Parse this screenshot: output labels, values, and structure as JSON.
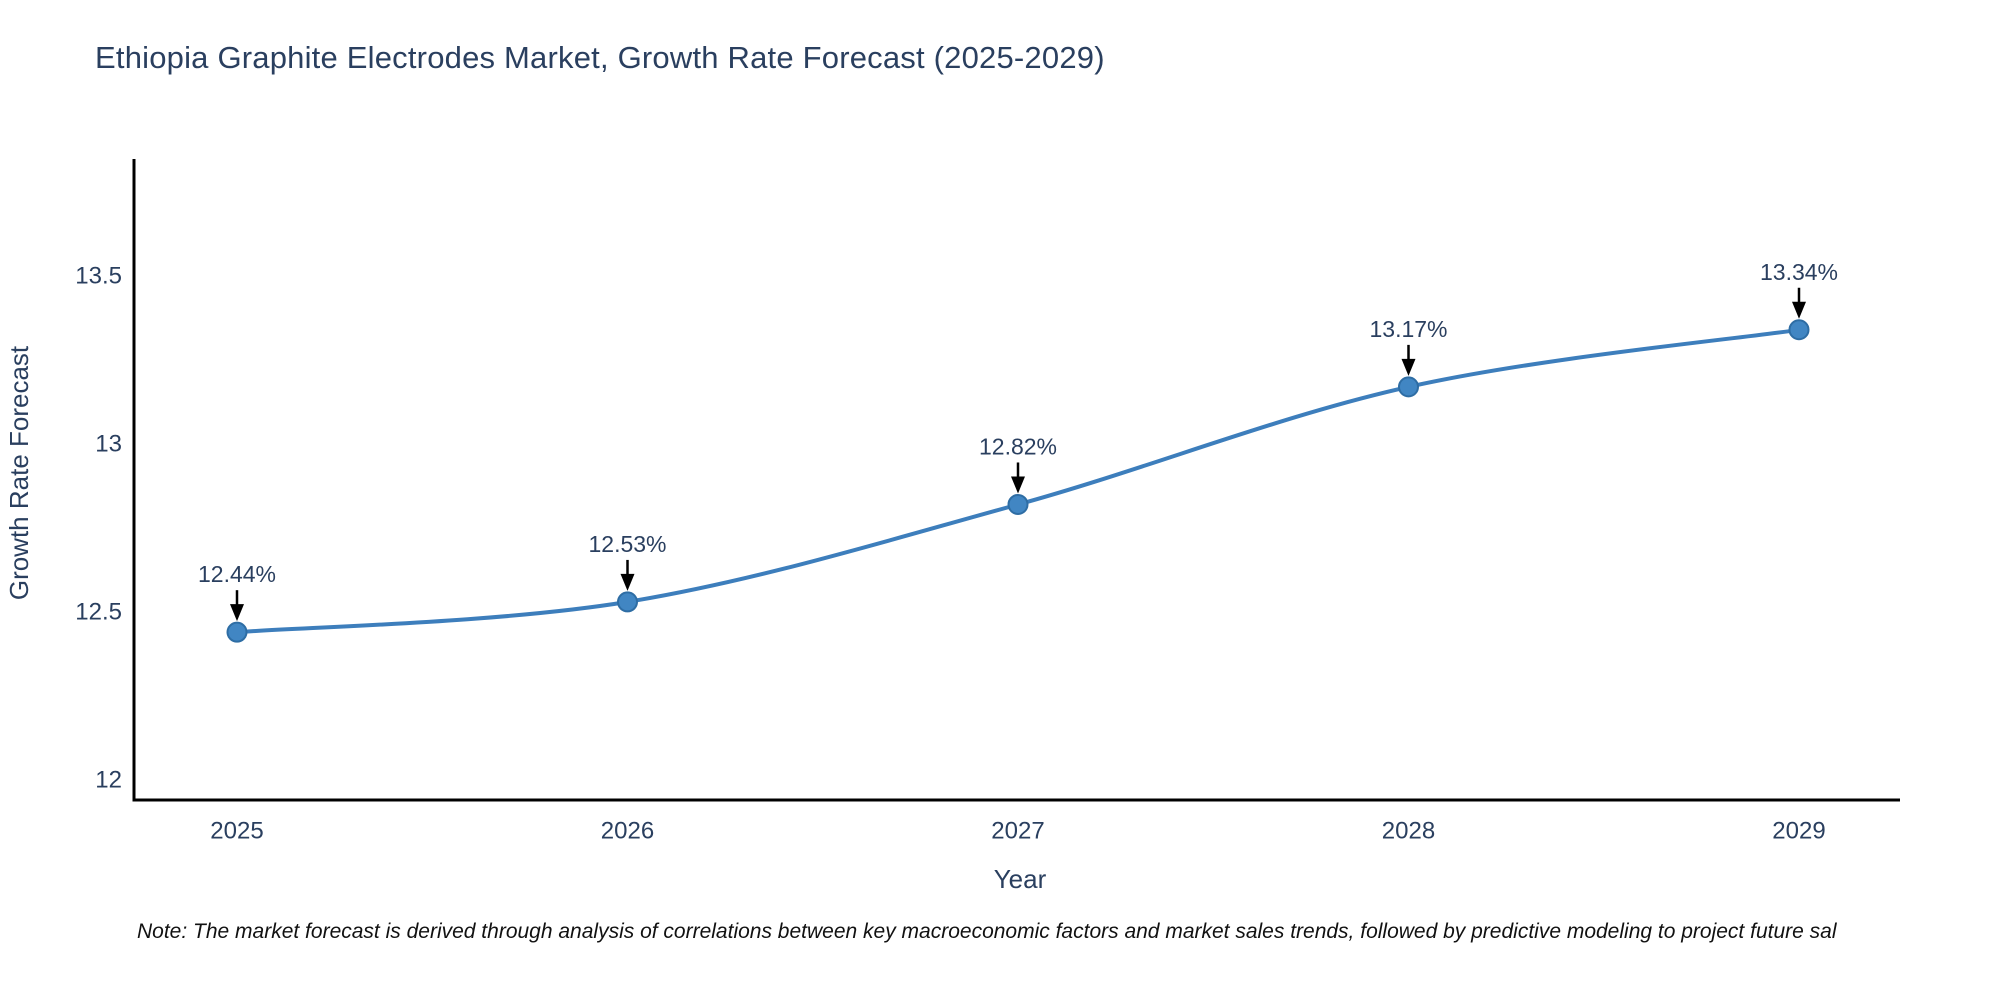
{
  "title": "Ethiopia Graphite Electrodes Market, Growth Rate Forecast (2025-2029)",
  "chart_data": {
    "type": "line",
    "x": [
      2025,
      2026,
      2027,
      2028,
      2029
    ],
    "xtick_labels": [
      "2025",
      "2026",
      "2027",
      "2028",
      "2029"
    ],
    "series": [
      {
        "name": "Growth Rate Forecast",
        "values": [
          12.44,
          12.53,
          12.82,
          13.17,
          13.34
        ]
      }
    ],
    "point_labels": [
      "12.44%",
      "12.53%",
      "12.82%",
      "13.17%",
      "13.34%"
    ],
    "xlabel": "Year",
    "ylabel": "Growth Rate Forecast",
    "yticks": [
      12,
      12.5,
      13,
      13.5
    ],
    "ytick_labels": [
      "12",
      "12.5",
      "13",
      "13.5"
    ],
    "ylim": [
      11.94,
      13.85
    ],
    "grid": false,
    "legend": "none",
    "line_shape": "spline",
    "line_color": "#3d7ebc",
    "marker_color": "#4186c3",
    "marker_edge_color": "#2e6da4",
    "annotation_arrow_color": "#000000"
  },
  "colors": {
    "title_text": "#2a3f5f",
    "axis_text": "#2a3f5f",
    "axis_line": "#000000",
    "background": "#ffffff",
    "note_text": "#111111"
  },
  "note": "Note: The market forecast is derived through analysis of correlations between key macroeconomic factors and market sales trends, followed by predictive modeling to project future sal"
}
